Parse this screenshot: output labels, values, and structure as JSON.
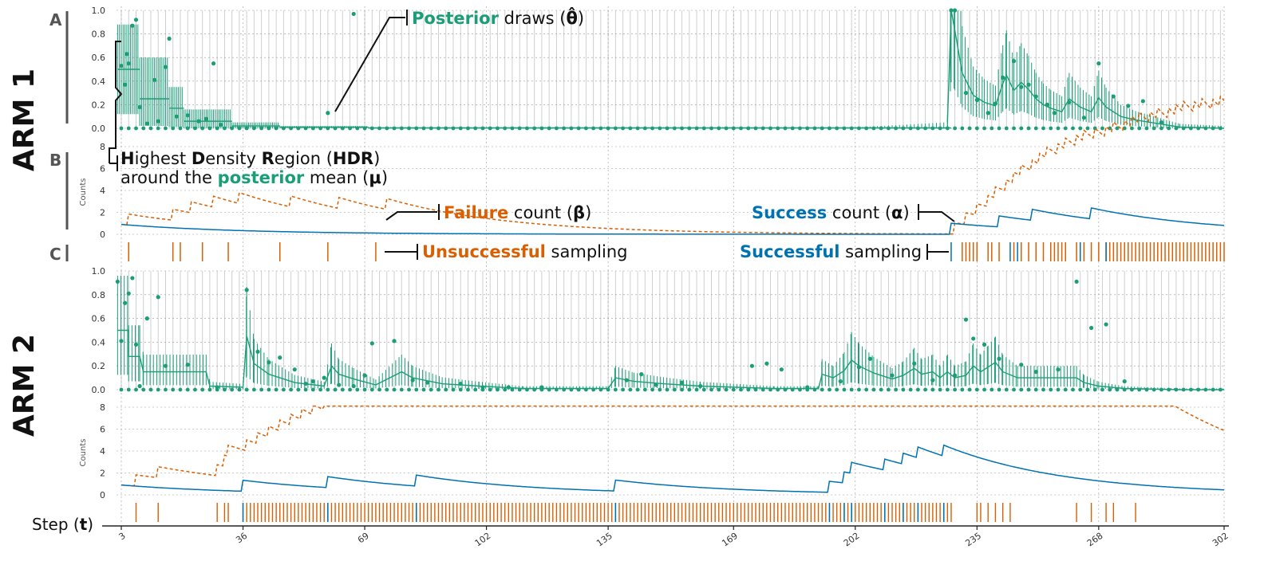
{
  "figure": {
    "arm1_label": "ARM 1",
    "arm2_label": "ARM 2",
    "panel_a": "A",
    "panel_b": "B",
    "panel_c": "C",
    "xlabel_prefix": "Step (",
    "xlabel_symbol": "t",
    "xlabel_suffix": ")"
  },
  "annotations": {
    "posterior": {
      "word": "Posterior",
      "rest": " draws (",
      "symbol": "θ̂",
      "close": ")"
    },
    "hdr_line1": {
      "h": "H",
      "ighest": "ighest ",
      "d": "D",
      "ensity": "ensity ",
      "r": "R",
      "egion": "egion (",
      "hdr": "HDR",
      "close": ")"
    },
    "hdr_line2": {
      "pre": "around the ",
      "word": "posterior",
      "mid": " mean (",
      "symbol": "μ",
      "close": ")"
    },
    "failure": {
      "word": "Failure",
      "rest": " count (",
      "symbol": "β",
      "close": ")"
    },
    "success": {
      "word": "Success",
      "rest": " count (",
      "symbol": "α",
      "close": ")"
    },
    "unsuccessful": {
      "word": "Unsuccessful",
      "rest": " sampling"
    },
    "successful": {
      "word": "Successful",
      "rest": " sampling"
    }
  },
  "colors": {
    "posterior": "#1b9e77",
    "failure": "#d95f02",
    "success": "#0072b2",
    "grey_bar": "#cfcfcf"
  },
  "chart_data": [
    {
      "id": "arm1_posterior",
      "type": "line",
      "ylim": [
        0,
        1.0
      ],
      "yticks": [
        "0.0",
        "0.2",
        "0.4",
        "0.6",
        "0.8",
        "1.0"
      ],
      "x_range": [
        1,
        302
      ],
      "segments": [
        {
          "t0": 2,
          "t1": 8,
          "mean": 0.5,
          "lo": 0.12,
          "hi": 0.88
        },
        {
          "t0": 8,
          "t1": 16,
          "mean": 0.25,
          "lo": 0.02,
          "hi": 0.6
        },
        {
          "t0": 16,
          "t1": 20,
          "mean": 0.17,
          "lo": 0.01,
          "hi": 0.35
        },
        {
          "t0": 20,
          "t1": 33,
          "mean": 0.06,
          "lo": 0.0,
          "hi": 0.16
        },
        {
          "t0": 33,
          "t1": 46,
          "mean": 0.02,
          "lo": 0.0,
          "hi": 0.05
        },
        {
          "t0": 46,
          "t1": 70,
          "mean": 0.01,
          "lo": 0.0,
          "hi": 0.02
        },
        {
          "t0": 70,
          "t1": 228,
          "mean": 0.003,
          "lo": 0.0,
          "hi": 0.01
        }
      ],
      "draws": [
        [
          3,
          0.53
        ],
        [
          4,
          0.37
        ],
        [
          5,
          0.55
        ],
        [
          6,
          0.87
        ],
        [
          7,
          0.92
        ],
        [
          4.5,
          0.63
        ],
        [
          8,
          0.18
        ],
        [
          10,
          0.04
        ],
        [
          12,
          0.41
        ],
        [
          15,
          0.52
        ],
        [
          16,
          0.76
        ],
        [
          13,
          0.06
        ],
        [
          18,
          0.1
        ],
        [
          21,
          0.11
        ],
        [
          24,
          0.06
        ],
        [
          28,
          0.55
        ],
        [
          30,
          0.03
        ],
        [
          26,
          0.08
        ],
        [
          59,
          0.13
        ],
        [
          66,
          0.97
        ],
        [
          228,
          1.0
        ],
        [
          229,
          1.0
        ],
        [
          232,
          0.3
        ],
        [
          235,
          0.24
        ],
        [
          238,
          0.13
        ],
        [
          240,
          0.21
        ],
        [
          242,
          0.43
        ],
        [
          245,
          0.57
        ],
        [
          247,
          0.35
        ],
        [
          249,
          0.37
        ],
        [
          251,
          0.27
        ],
        [
          254,
          0.2
        ],
        [
          256,
          0.13
        ],
        [
          260,
          0.22
        ],
        [
          264,
          0.09
        ],
        [
          268,
          0.55
        ],
        [
          272,
          0.27
        ],
        [
          276,
          0.19
        ],
        [
          280,
          0.23
        ],
        [
          285,
          0.05
        ]
      ],
      "late_curve": [
        [
          227,
          0.05
        ],
        [
          228,
          1.0
        ],
        [
          229,
          0.83
        ],
        [
          231,
          0.47
        ],
        [
          234,
          0.28
        ],
        [
          237,
          0.22
        ],
        [
          240,
          0.19
        ],
        [
          242,
          0.38
        ],
        [
          243,
          0.45
        ],
        [
          245,
          0.32
        ],
        [
          247,
          0.39
        ],
        [
          249,
          0.33
        ],
        [
          251,
          0.25
        ],
        [
          253,
          0.2
        ],
        [
          255,
          0.17
        ],
        [
          258,
          0.14
        ],
        [
          260,
          0.25
        ],
        [
          263,
          0.18
        ],
        [
          266,
          0.14
        ],
        [
          268,
          0.26
        ],
        [
          270,
          0.18
        ],
        [
          274,
          0.1
        ],
        [
          278,
          0.07
        ],
        [
          284,
          0.04
        ],
        [
          290,
          0.01
        ],
        [
          302,
          0.0
        ]
      ]
    },
    {
      "id": "arm1_counts",
      "type": "line",
      "ylabel": "Counts",
      "ylim": [
        0,
        8
      ],
      "yticks": [
        "0",
        "2",
        "4",
        "6",
        "8"
      ],
      "series": [
        {
          "name": "Failure count (β)",
          "style": "dashed",
          "events": [
            5,
            17,
            22,
            28,
            35,
            49,
            62,
            75,
            229,
            232,
            235,
            238,
            240,
            243,
            245,
            247,
            250,
            252,
            254,
            257,
            259,
            262,
            264,
            267,
            270,
            272,
            275,
            277,
            279,
            282,
            284,
            287,
            289,
            291,
            294,
            296,
            299,
            301
          ]
        },
        {
          "name": "Success count (α)",
          "style": "solid",
          "events": [
            228,
            241,
            250,
            266
          ]
        }
      ]
    },
    {
      "id": "arm1_sampling",
      "type": "scatter",
      "unsuccessful": [
        5,
        17,
        19,
        25,
        32,
        46,
        59,
        72,
        231,
        232,
        233,
        234,
        235,
        238,
        239,
        241,
        245,
        247,
        249,
        251,
        253,
        255,
        256,
        257,
        258,
        259,
        262,
        263,
        264,
        266,
        268,
        270,
        271,
        272,
        273,
        274,
        275,
        276,
        277,
        278,
        279,
        280,
        281,
        282,
        283,
        284,
        285,
        286,
        287,
        288,
        289,
        290,
        291,
        292,
        293,
        294,
        295,
        296,
        297,
        298,
        299,
        300,
        301,
        302
      ],
      "successful": [
        228,
        244,
        246,
        263,
        270
      ]
    },
    {
      "id": "arm2_posterior",
      "type": "line",
      "ylim": [
        0,
        1.0
      ],
      "yticks": [
        "0.0",
        "0.2",
        "0.4",
        "0.6",
        "0.8",
        "1.0"
      ],
      "draws": [
        [
          2,
          0.91
        ],
        [
          3,
          0.41
        ],
        [
          4,
          0.73
        ],
        [
          5,
          0.81
        ],
        [
          6,
          0.94
        ],
        [
          7,
          0.38
        ],
        [
          8,
          0.03
        ],
        [
          10,
          0.6
        ],
        [
          13,
          0.78
        ],
        [
          15,
          0.2
        ],
        [
          21,
          0.21
        ],
        [
          29,
          0.02
        ],
        [
          37,
          0.84
        ],
        [
          40,
          0.32
        ],
        [
          43,
          0.23
        ],
        [
          46,
          0.27
        ],
        [
          50,
          0.17
        ],
        [
          53,
          0.05
        ],
        [
          55,
          0.07
        ],
        [
          58,
          0.1
        ],
        [
          62,
          0.04
        ],
        [
          66,
          0.03
        ],
        [
          69,
          0.12
        ],
        [
          71,
          0.39
        ],
        [
          77,
          0.41
        ],
        [
          82,
          0.08
        ],
        [
          86,
          0.06
        ],
        [
          95,
          0.05
        ],
        [
          101,
          0.02
        ],
        [
          108,
          0.02
        ],
        [
          117,
          0.02
        ],
        [
          140,
          0.08
        ],
        [
          144,
          0.13
        ],
        [
          148,
          0.04
        ],
        [
          155,
          0.06
        ],
        [
          160,
          0.03
        ],
        [
          174,
          0.2
        ],
        [
          178,
          0.22
        ],
        [
          182,
          0.17
        ],
        [
          189,
          0.02
        ],
        [
          198,
          0.07
        ],
        [
          203,
          0.19
        ],
        [
          206,
          0.26
        ],
        [
          212,
          0.12
        ],
        [
          218,
          0.22
        ],
        [
          223,
          0.08
        ],
        [
          229,
          0.12
        ],
        [
          232,
          0.59
        ],
        [
          234,
          0.43
        ],
        [
          237,
          0.38
        ],
        [
          241,
          0.26
        ],
        [
          247,
          0.21
        ],
        [
          251,
          0.15
        ],
        [
          257,
          0.17
        ],
        [
          262,
          0.91
        ],
        [
          266,
          0.52
        ],
        [
          270,
          0.55
        ],
        [
          275,
          0.07
        ]
      ],
      "mean_curve": [
        [
          2,
          0.5
        ],
        [
          5,
          0.5
        ],
        [
          5,
          0.28
        ],
        [
          8,
          0.28
        ],
        [
          9,
          0.15
        ],
        [
          26,
          0.15
        ],
        [
          27,
          0.03
        ],
        [
          36,
          0.02
        ],
        [
          37,
          0.45
        ],
        [
          39,
          0.22
        ],
        [
          43,
          0.13
        ],
        [
          50,
          0.06
        ],
        [
          58,
          0.03
        ],
        [
          60,
          0.2
        ],
        [
          62,
          0.13
        ],
        [
          66,
          0.09
        ],
        [
          72,
          0.04
        ],
        [
          79,
          0.15
        ],
        [
          82,
          0.1
        ],
        [
          90,
          0.05
        ],
        [
          100,
          0.03
        ],
        [
          112,
          0.01
        ],
        [
          135,
          0.01
        ],
        [
          137,
          0.1
        ],
        [
          142,
          0.07
        ],
        [
          150,
          0.05
        ],
        [
          160,
          0.03
        ],
        [
          180,
          0.01
        ],
        [
          192,
          0.01
        ],
        [
          193,
          0.13
        ],
        [
          196,
          0.1
        ],
        [
          199,
          0.16
        ],
        [
          201,
          0.25
        ],
        [
          203,
          0.2
        ],
        [
          207,
          0.14
        ],
        [
          212,
          0.09
        ],
        [
          215,
          0.12
        ],
        [
          218,
          0.18
        ],
        [
          220,
          0.13
        ],
        [
          223,
          0.15
        ],
        [
          225,
          0.1
        ],
        [
          227,
          0.15
        ],
        [
          229,
          0.1
        ],
        [
          232,
          0.12
        ],
        [
          234,
          0.2
        ],
        [
          236,
          0.15
        ],
        [
          238,
          0.19
        ],
        [
          240,
          0.23
        ],
        [
          242,
          0.15
        ],
        [
          246,
          0.1
        ],
        [
          262,
          0.1
        ],
        [
          264,
          0.06
        ],
        [
          268,
          0.03
        ],
        [
          275,
          0.01
        ],
        [
          290,
          0.0
        ],
        [
          302,
          0.0
        ]
      ]
    },
    {
      "id": "arm2_counts",
      "type": "line",
      "ylabel": "Counts",
      "ylim": [
        0,
        8
      ],
      "yticks": [
        "0",
        "2",
        "4",
        "6",
        "8"
      ],
      "series": [
        {
          "name": "Failure count (β)",
          "style": "dashed"
        },
        {
          "name": "Success count (α)",
          "style": "solid",
          "events": [
            36,
            59,
            83,
            137,
            195,
            199,
            201,
            210,
            215,
            219,
            226
          ]
        }
      ]
    },
    {
      "id": "arm2_sampling",
      "type": "scatter",
      "successful": [
        36,
        59,
        83,
        137,
        195,
        199,
        201,
        210,
        215,
        219,
        226
      ],
      "unsuccessful_ranges": [
        [
          32,
          32
        ],
        [
          37,
          58
        ],
        [
          60,
          82
        ],
        [
          84,
          136
        ],
        [
          138,
          194
        ],
        [
          196,
          198
        ],
        [
          200,
          200
        ],
        [
          202,
          209
        ],
        [
          211,
          214
        ],
        [
          216,
          218
        ],
        [
          220,
          225
        ],
        [
          227,
          228
        ]
      ],
      "unsuccessful_extra": [
        7,
        13,
        29,
        31,
        235,
        236,
        238,
        240,
        242,
        244,
        262,
        266,
        270,
        272,
        278
      ]
    }
  ],
  "x_axis": {
    "ticks": [
      "3",
      "36",
      "69",
      "102",
      "135",
      "169",
      "202",
      "235",
      "268",
      "302"
    ]
  }
}
